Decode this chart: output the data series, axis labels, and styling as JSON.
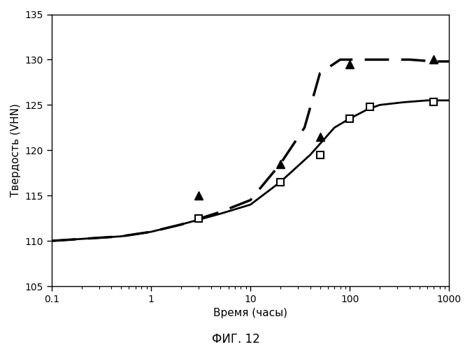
{
  "title": "ФИГ. 12",
  "xlabel": "Время (часы)",
  "ylabel": "Твердость (VHN)",
  "xlim": [
    0.1,
    1000
  ],
  "ylim": [
    105,
    135
  ],
  "yticks": [
    105,
    110,
    115,
    120,
    125,
    130,
    135
  ],
  "xticks": [
    0.1,
    1,
    10,
    100,
    1000
  ],
  "solid_line_x": [
    0.1,
    0.5,
    1.0,
    2.0,
    5.0,
    10.0,
    20.0,
    40.0,
    70.0,
    100.0,
    150.0,
    200.0,
    350.0,
    600.0,
    1000.0
  ],
  "solid_line_y": [
    110.0,
    110.5,
    111.0,
    111.8,
    113.0,
    114.0,
    116.5,
    119.5,
    122.5,
    123.5,
    124.5,
    125.0,
    125.3,
    125.5,
    125.5
  ],
  "solid_markers_x": [
    3.0,
    20.0,
    50.0,
    100.0,
    160.0,
    700.0
  ],
  "solid_markers_y": [
    112.5,
    116.5,
    119.5,
    123.5,
    124.8,
    125.3
  ],
  "dashed_line_x": [
    0.1,
    0.5,
    1.0,
    2.0,
    5.0,
    10.0,
    20.0,
    35.0,
    50.0,
    80.0,
    120.0,
    200.0,
    400.0,
    700.0,
    1000.0
  ],
  "dashed_line_y": [
    110.0,
    110.5,
    111.0,
    111.8,
    113.2,
    114.5,
    118.5,
    122.5,
    128.5,
    130.0,
    130.0,
    130.0,
    130.0,
    129.8,
    129.8
  ],
  "dashed_markers_x": [
    3.0,
    20.0,
    50.0,
    100.0,
    700.0
  ],
  "dashed_markers_y": [
    115.0,
    118.5,
    121.5,
    129.5,
    130.0
  ],
  "line_color": "#000000",
  "background_color": "#ffffff",
  "figsize": [
    6.75,
    5.0
  ],
  "dpi": 100
}
